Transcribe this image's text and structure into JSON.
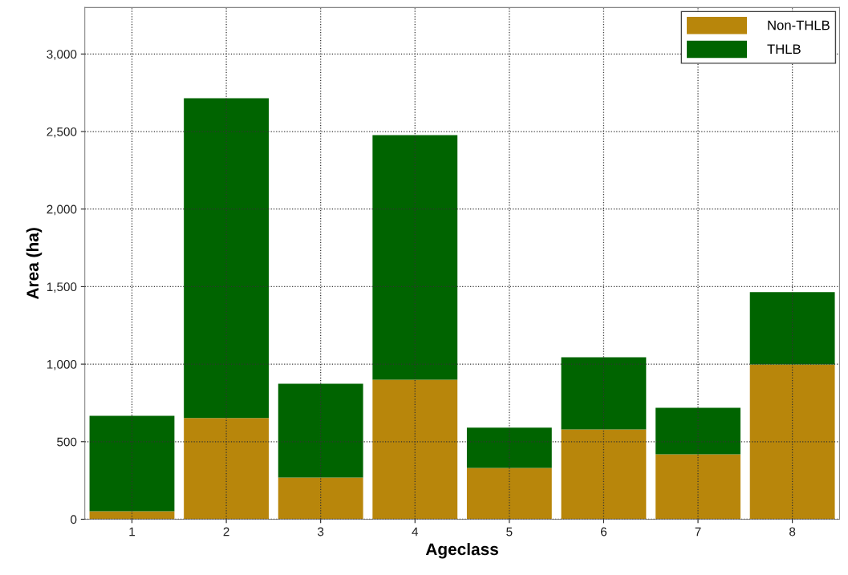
{
  "chart_data": {
    "type": "bar",
    "stacked": true,
    "xlabel": "Ageclass",
    "ylabel": "Area (ha)",
    "categories": [
      "1",
      "2",
      "3",
      "4",
      "5",
      "6",
      "7",
      "8"
    ],
    "series": [
      {
        "name": "Non-THLB",
        "color": "#b8860b",
        "values": [
          52,
          652,
          269,
          900,
          331,
          579,
          419,
          998
        ]
      },
      {
        "name": "THLB",
        "color": "#006400",
        "values": [
          615,
          2063,
          605,
          1577,
          259,
          466,
          300,
          466
        ]
      }
    ],
    "ylim": [
      0,
      3300
    ],
    "yticks": [
      0,
      500,
      {
        "value": 1000,
        "label": "1,000"
      },
      {
        "value": 1500,
        "label": "1,500"
      },
      {
        "value": 2000,
        "label": "2,000"
      },
      {
        "value": 2500,
        "label": "2,500"
      },
      {
        "value": 3000,
        "label": "3,000"
      }
    ],
    "grid": true,
    "legend": "top right",
    "line_style": "dotted"
  }
}
